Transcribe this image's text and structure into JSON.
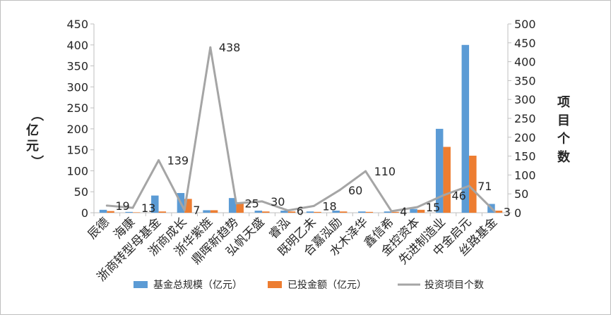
{
  "chart_data": {
    "type": "bar",
    "categories": [
      "辰德",
      "海康",
      "浙商转型母基金",
      "浙商成长",
      "浙华紫旌",
      "鼎晖新趋势",
      "弘帆天盛",
      "睿泓",
      "既明乙未",
      "合嘉泓励",
      "水木泽华",
      "鑫信希",
      "金控资本",
      "先进制造业",
      "中金启元",
      "丝路基金"
    ],
    "series": [
      {
        "name": "基金总规模（亿元）",
        "type": "bar",
        "axis": "left",
        "color": "#5b9bd5",
        "values": [
          7,
          2,
          41,
          47,
          6,
          35,
          5,
          5,
          3,
          5,
          3,
          3,
          9,
          200,
          400,
          21
        ]
      },
      {
        "name": "已投金额（亿元）",
        "type": "bar",
        "axis": "left",
        "color": "#ed7d31",
        "values": [
          4,
          1,
          3,
          33,
          6,
          24,
          3,
          3,
          2,
          3,
          2,
          2,
          7,
          157,
          136,
          5
        ]
      },
      {
        "name": "投资项目个数",
        "type": "line",
        "axis": "right",
        "color": "#a5a5a5",
        "values": [
          19,
          13,
          139,
          7,
          438,
          25,
          30,
          6,
          18,
          60,
          110,
          4,
          15,
          46,
          71,
          3
        ]
      }
    ],
    "ylabel_left": "（亿元）",
    "ylabel_right": "项目个数",
    "ylim_left": [
      0,
      450
    ],
    "ylim_right": [
      0,
      500
    ],
    "yticks_left": [
      0,
      50,
      100,
      150,
      200,
      250,
      300,
      350,
      400,
      450
    ],
    "yticks_right": [
      0,
      50,
      100,
      150,
      200,
      250,
      300,
      350,
      400,
      450,
      500
    ],
    "grid": false,
    "legend_position": "bottom"
  }
}
